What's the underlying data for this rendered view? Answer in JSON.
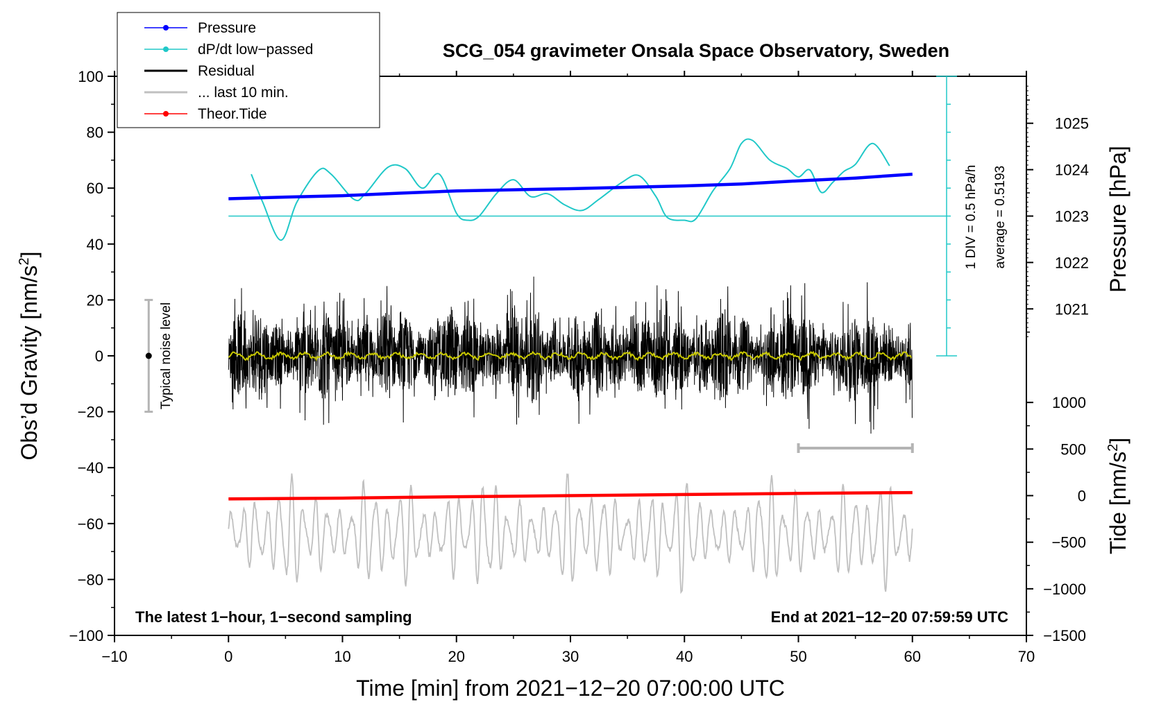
{
  "chart_data": {
    "type": "line",
    "title": "SCG_054 gravimeter Onsala Space Observatory, Sweden",
    "xlabel": "Time [min] from 2021−12−20 07:00:00 UTC",
    "ylabel": "Obs’d Gravity [nm/s",
    "ylabel_sup": "2",
    "ylabel_close": "]",
    "xlim": [
      -10,
      70
    ],
    "ylim": [
      -100,
      100
    ],
    "x_ticks": [
      -10,
      0,
      10,
      20,
      30,
      40,
      50,
      60,
      70
    ],
    "x_tick_labels": [
      "−10",
      "0",
      "10",
      "20",
      "30",
      "40",
      "50",
      "60",
      "70"
    ],
    "y_ticks": [
      -100,
      -80,
      -60,
      -40,
      -20,
      0,
      20,
      40,
      60,
      80,
      100
    ],
    "y_tick_labels": [
      "−100",
      "−80",
      "−60",
      "−40",
      "−20",
      "0",
      "20",
      "40",
      "60",
      "80",
      "100"
    ],
    "right_axes": {
      "pressure": {
        "label": "Pressure [hPa]",
        "ticks": [
          1021,
          1022,
          1023,
          1024,
          1025
        ],
        "tick_labels": [
          "1021",
          "1022",
          "1023",
          "1024",
          "1025"
        ],
        "gravity_at_1023": 50,
        "gravity_per_hPa": 16.6
      },
      "tide": {
        "label_pre": "Tide [nm/s",
        "label_sup": "2",
        "label_close": "]",
        "ticks": [
          -1500,
          -1000,
          -500,
          0,
          500,
          1000
        ],
        "tick_labels": [
          "−1500",
          "−1000",
          "−500",
          "0",
          "500",
          "1000"
        ],
        "gravity_at_zero": -50,
        "gravity_per_1000": 33.33
      }
    },
    "legend": {
      "position": "top-left",
      "entries": [
        {
          "label": "Pressure",
          "color": "#0000ff",
          "marker": true
        },
        {
          "label": "dP/dt low−passed",
          "color": "#20c8c8",
          "marker": true
        },
        {
          "label": "Residual",
          "color": "#000000",
          "marker": false
        },
        {
          "label": "... last 10 min.",
          "color": "#c0c0c0",
          "marker": false
        },
        {
          "label": "Theor.Tide",
          "color": "#ff0000",
          "marker": true
        }
      ]
    },
    "series": [
      {
        "name": "Pressure",
        "color": "#0000ff",
        "x": [
          0,
          5,
          10,
          15,
          20,
          25,
          30,
          35,
          40,
          45,
          50,
          55,
          60
        ],
        "y": [
          56.2,
          56.8,
          57.3,
          58.2,
          59.0,
          59.4,
          59.8,
          60.3,
          60.8,
          61.5,
          62.6,
          63.6,
          65.0
        ]
      },
      {
        "name": "dP/dt low-passed",
        "color": "#20c8c8",
        "x": [
          2,
          3,
          4.6,
          6,
          7.9,
          9,
          11,
          12,
          14,
          15.5,
          17,
          18.5,
          20,
          21,
          22,
          23.5,
          25,
          26.5,
          28,
          29.5,
          31,
          32.5,
          34.5,
          36,
          37.5,
          38.5,
          40,
          41,
          42.5,
          44,
          45,
          46,
          47.5,
          49,
          50,
          51,
          52,
          53,
          54,
          55,
          56.5,
          58
        ],
        "y": [
          65,
          55,
          41.4,
          55,
          66.3,
          65,
          56,
          58,
          67.5,
          67,
          60,
          65,
          51,
          48.5,
          50,
          58,
          63,
          57,
          58,
          54,
          52,
          56,
          62,
          64.5,
          57,
          49.5,
          48.5,
          49,
          59,
          67,
          76,
          77,
          70,
          67,
          64,
          66.5,
          58.5,
          62,
          66,
          68.5,
          76,
          68
        ]
      },
      {
        "name": "dP/dt average line",
        "color": "#20c8c8",
        "x": [
          0,
          63
        ],
        "y": [
          50,
          50
        ]
      },
      {
        "name": "Residual",
        "color": "#000000",
        "x_range": [
          0,
          60
        ],
        "amplitude_range": [
          -30,
          30
        ]
      },
      {
        "name": "Residual low-passed",
        "color": "#c8c800",
        "x_range": [
          0,
          60
        ],
        "amplitude_range": [
          -1.5,
          1.5
        ]
      },
      {
        "name": "... last 10 min.",
        "color": "#c0c0c0",
        "x_range": [
          0,
          60
        ],
        "amplitude_range": [
          -86,
          -41
        ]
      },
      {
        "name": "Theor.Tide",
        "color": "#ff0000",
        "x": [
          0,
          10,
          20,
          30,
          40,
          50,
          60
        ],
        "y": [
          -51.2,
          -50.9,
          -50.4,
          -50,
          -49.6,
          -49.2,
          -48.9
        ]
      }
    ],
    "annotations": {
      "noise_label": "Typical noise level",
      "noise_center": 0,
      "noise_half_range": 20,
      "noise_x": -7,
      "div_note": "1 DIV = 0.5 hPa/h",
      "average_note": "average = 0.5193",
      "dpdt_scale_x": 63,
      "dpdt_scale_range": [
        0,
        100
      ],
      "dpdt_scale_step": 10,
      "window_bar_x": [
        50,
        60
      ],
      "window_bar_y": -33,
      "bottom_left": "The latest 1−hour, 1−second sampling",
      "bottom_right": "End at 2021−12−20 07:59:59 UTC"
    }
  }
}
